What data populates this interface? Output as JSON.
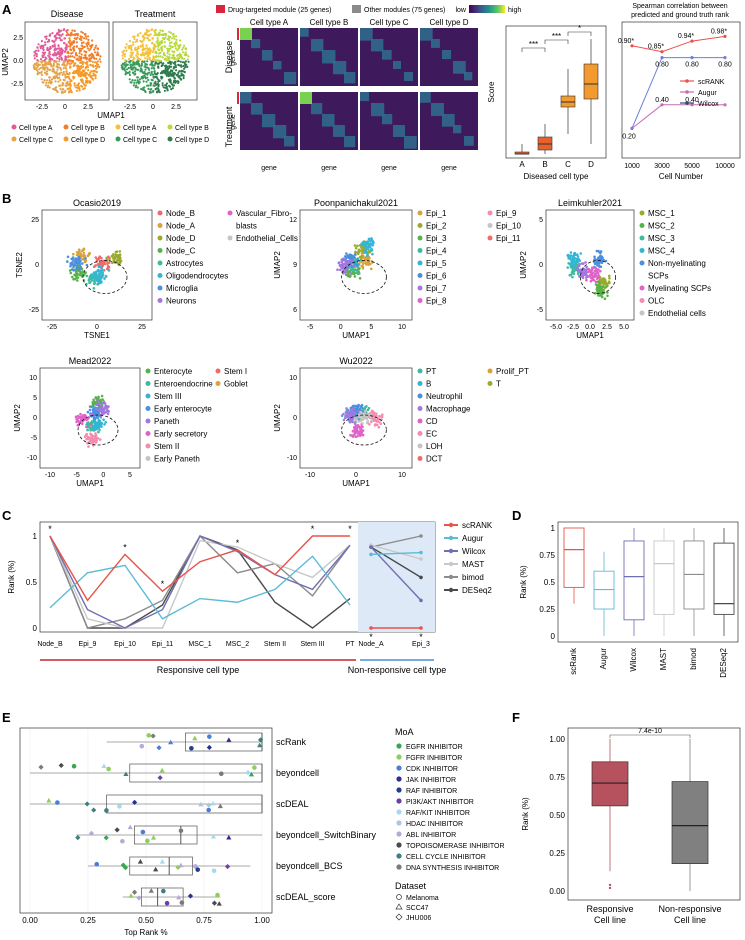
{
  "panels": {
    "A": "A",
    "B": "B",
    "C": "C",
    "D": "D",
    "E": "E",
    "F": "F"
  },
  "panelA": {
    "umap_titles": [
      "Disease",
      "Treatment"
    ],
    "xlabel": "UMAP1",
    "ylabel": "UMAP2",
    "xticks": [
      "-2.5",
      "0",
      "2.5"
    ],
    "yticks": [
      "2.5",
      "0.0",
      "-2.5"
    ],
    "legend": [
      {
        "label": "Cell type A",
        "color": "#e15a9a"
      },
      {
        "label": "Cell type B",
        "color": "#f07f2b"
      },
      {
        "label": "Cell type A",
        "color": "#f3c23a"
      },
      {
        "label": "Cell type B",
        "color": "#b9d93a"
      },
      {
        "label": "Cell type C",
        "color": "#e4a44a"
      },
      {
        "label": "Cell type D",
        "color": "#f59a2a"
      },
      {
        "label": "Cell type C",
        "color": "#3a9a5b"
      },
      {
        "label": "Cell type D",
        "color": "#2f7d4f"
      }
    ],
    "heatmap_legend": {
      "drug": "Drug-targeted module (25 genes)",
      "other": "Other modules (75 genes)",
      "low": "low",
      "high": "high",
      "drug_color": "#d7263d",
      "other_color": "#8a8a8a"
    },
    "heatmap_cols": [
      "Cell type A",
      "Cell type B",
      "Cell type C",
      "Cell type D"
    ],
    "heatmap_rows": [
      "Disease",
      "Treatment"
    ],
    "heatmap_axis": "gene",
    "boxplot": {
      "ylabel": "Score",
      "xlabel": "Diseased cell type",
      "categories": [
        "A",
        "B",
        "C",
        "D"
      ],
      "sig": [
        "***",
        "***",
        "*"
      ]
    },
    "spearman": {
      "title1": "Spearman correlation between",
      "title2": "predicted and ground truth rank",
      "xlabel": "Cell Number",
      "xticks": [
        "1000",
        "3000",
        "5000",
        "10000"
      ],
      "legend": [
        {
          "label": "scRANK",
          "color": "#e8534a"
        },
        {
          "label": "Augur",
          "color": "#c76bb5"
        },
        {
          "label": "Wilcox",
          "color": "#2a4f6e"
        }
      ],
      "labels_scrank": [
        "0.90*",
        "0.85*",
        "0.94*",
        "0.98*"
      ],
      "labels_wilcox": [
        "0.80",
        "0.80",
        "0.80"
      ],
      "labels_augur": [
        "0.20",
        "0.40",
        "0.40"
      ]
    }
  },
  "panelB": {
    "plots": [
      {
        "title": "Ocasio2019",
        "xlabel": "TSNE1",
        "ylabel": "TSNE2",
        "xticks": [
          "-25",
          "0",
          "25"
        ],
        "yticks": [
          "25",
          "0",
          "-25"
        ],
        "legend": [
          "Node_B",
          "Node_A",
          "Node_D",
          "Node_C",
          "Astrocytes",
          "Oligodendrocytes",
          "Microglia",
          "Neurons"
        ],
        "legend2": [
          "Vascular_Fibro-",
          "blasts",
          "Endothelial_Cells"
        ]
      },
      {
        "title": "Poonpanichakul2021",
        "xlabel": "UMAP1",
        "ylabel": "UMAP2",
        "xticks": [
          "-5",
          "0",
          "5",
          "10"
        ],
        "yticks": [
          "12",
          "9",
          "6"
        ],
        "legend": [
          "Epi_1",
          "Epi_2",
          "Epi_3",
          "Epi_4",
          "Epi_5",
          "Epi_6",
          "Epi_7",
          "Epi_8"
        ],
        "legend2": [
          "Epi_9",
          "Epi_10",
          "Epi_11"
        ]
      },
      {
        "title": "Leimkuhler2021",
        "xlabel": "UMAP1",
        "ylabel": "UMAP2",
        "xticks": [
          "-5.0",
          "-2.5",
          "0.0",
          "2.5",
          "5.0"
        ],
        "yticks": [
          "5",
          "0",
          "-5"
        ],
        "legend": [
          "MSC_1",
          "MSC_2",
          "MSC_3",
          "MSC_4",
          "Non-myelinating",
          "SCPs",
          "Myelinating SCPs",
          "OLC",
          "Endothelial cells"
        ]
      },
      {
        "title": "Mead2022",
        "xlabel": "UMAP1",
        "ylabel": "UMAP2",
        "xticks": [
          "-10",
          "-5",
          "0",
          "5"
        ],
        "yticks": [
          "10",
          "5",
          "0",
          "-5",
          "-10"
        ],
        "legend": [
          "Enterocyte",
          "Enteroendocrine",
          "Stem III",
          "Early enterocyte",
          "Paneth",
          "Early secretory",
          "Stem II",
          "Early Paneth"
        ],
        "legend2": [
          "Stem I",
          "Goblet"
        ]
      },
      {
        "title": "Wu2022",
        "xlabel": "UMAP1",
        "ylabel": "UMAP2",
        "xticks": [
          "-10",
          "0",
          "10"
        ],
        "yticks": [
          "10",
          "0",
          "-10"
        ],
        "legend": [
          "PT",
          "B",
          "Neutrophil",
          "Macrophage",
          "CD",
          "EC",
          "LOH",
          "DCT"
        ],
        "legend2": [
          "Prolif_PT",
          "T"
        ]
      }
    ]
  },
  "panelC": {
    "ylabel": "Rank (%)",
    "yticks": [
      "1",
      "0.5",
      "0"
    ],
    "categories": [
      "Node_B",
      "Epi_9",
      "Epi_10",
      "Epi_11",
      "MSC_1",
      "MSC_2",
      "Stem II",
      "Stem III",
      "PT"
    ],
    "nr_categories": [
      "Node_A",
      "Epi_3"
    ],
    "responsive_label": "Responsive cell type",
    "nonresponsive_label": "Non-responsive cell type",
    "legend": [
      {
        "label": "scRANK",
        "color": "#e8534a"
      },
      {
        "label": "Augur",
        "color": "#5bbcd6"
      },
      {
        "label": "Wilcox",
        "color": "#6e6fb2"
      },
      {
        "label": "MAST",
        "color": "#c8c8c8"
      },
      {
        "label": "bimod",
        "color": "#8c8c8c"
      },
      {
        "label": "DESeq2",
        "color": "#4a4a4a"
      }
    ],
    "star": "*"
  },
  "chart_data": {
    "type": "box",
    "ylabel": "Rank (%)",
    "categories": [
      "scRank",
      "Augur",
      "Wilcox",
      "MAST",
      "bimod",
      "DESeq2"
    ],
    "yticks": [
      "1",
      "0.75",
      "0.5",
      "0.25",
      "0"
    ],
    "colors": [
      "#e8534a",
      "#5bbcd6",
      "#6e6fb2",
      "#c8c8c8",
      "#8c8c8c",
      "#4a4a4a"
    ],
    "stats": [
      {
        "min": 0.3,
        "q1": 0.45,
        "median": 0.8,
        "q3": 1.0,
        "max": 1.0
      },
      {
        "min": 0.0,
        "q1": 0.25,
        "median": 0.43,
        "q3": 0.6,
        "max": 0.78
      },
      {
        "min": 0.0,
        "q1": 0.15,
        "median": 0.55,
        "q3": 0.88,
        "max": 1.0
      },
      {
        "min": 0.0,
        "q1": 0.2,
        "median": 0.67,
        "q3": 0.88,
        "max": 1.0
      },
      {
        "min": 0.0,
        "q1": 0.25,
        "median": 0.57,
        "q3": 0.88,
        "max": 1.0
      },
      {
        "min": 0.0,
        "q1": 0.2,
        "median": 0.3,
        "q3": 0.86,
        "max": 1.0
      }
    ]
  },
  "panelE": {
    "xlabel": "Top Rank %",
    "xticks": [
      "0.00",
      "0.25",
      "0.50",
      "0.75",
      "1.00"
    ],
    "methods": [
      "scRank",
      "beyondcell",
      "scDEAL",
      "beyondcell_SwitchBinary",
      "beyondcell_BCS",
      "scDEAL_score"
    ],
    "moa_title": "MoA",
    "moa": [
      {
        "label": "EGFR INHIBITOR",
        "color": "#3aa655"
      },
      {
        "label": "FGFR INHIBITOR",
        "color": "#8ecf5a"
      },
      {
        "label": "CDK INHIBITOR",
        "color": "#4a7fd6"
      },
      {
        "label": "JAK INHIBITOR",
        "color": "#2e2e8f"
      },
      {
        "label": "RAF INHIBITOR",
        "color": "#1f3f8f"
      },
      {
        "label": "PI3K/AKT INHIBITOR",
        "color": "#6a3fa6"
      },
      {
        "label": "RAF/KIT INHIBITOR",
        "color": "#a8d8ef"
      },
      {
        "label": "HDAC INHIBITOR",
        "color": "#b0c4de"
      },
      {
        "label": "ABL INHIBITOR",
        "color": "#b7a9d6"
      },
      {
        "label": "TOPOISOMERASE INHIBITOR",
        "color": "#4a4a4a"
      },
      {
        "label": "CELL CYCLE INHIBITOR",
        "color": "#3f7f7f"
      },
      {
        "label": "DNA SYNTHESIS INHIBITOR",
        "color": "#7a7a7a"
      }
    ],
    "dataset_title": "Dataset",
    "datasets": [
      "Melanoma",
      "SCC47",
      "JHU006"
    ]
  },
  "panelF": {
    "ylabel": "Rank (%)",
    "yticks": [
      "1.00",
      "0.75",
      "0.50",
      "0.25",
      "0.00"
    ],
    "pvalue": "7.4e-10",
    "cat1": [
      "Responsive",
      "Cell line"
    ],
    "cat2": [
      "Non-responsive",
      "Cell line"
    ],
    "color1": "#b5525e",
    "color2": "#808080"
  }
}
